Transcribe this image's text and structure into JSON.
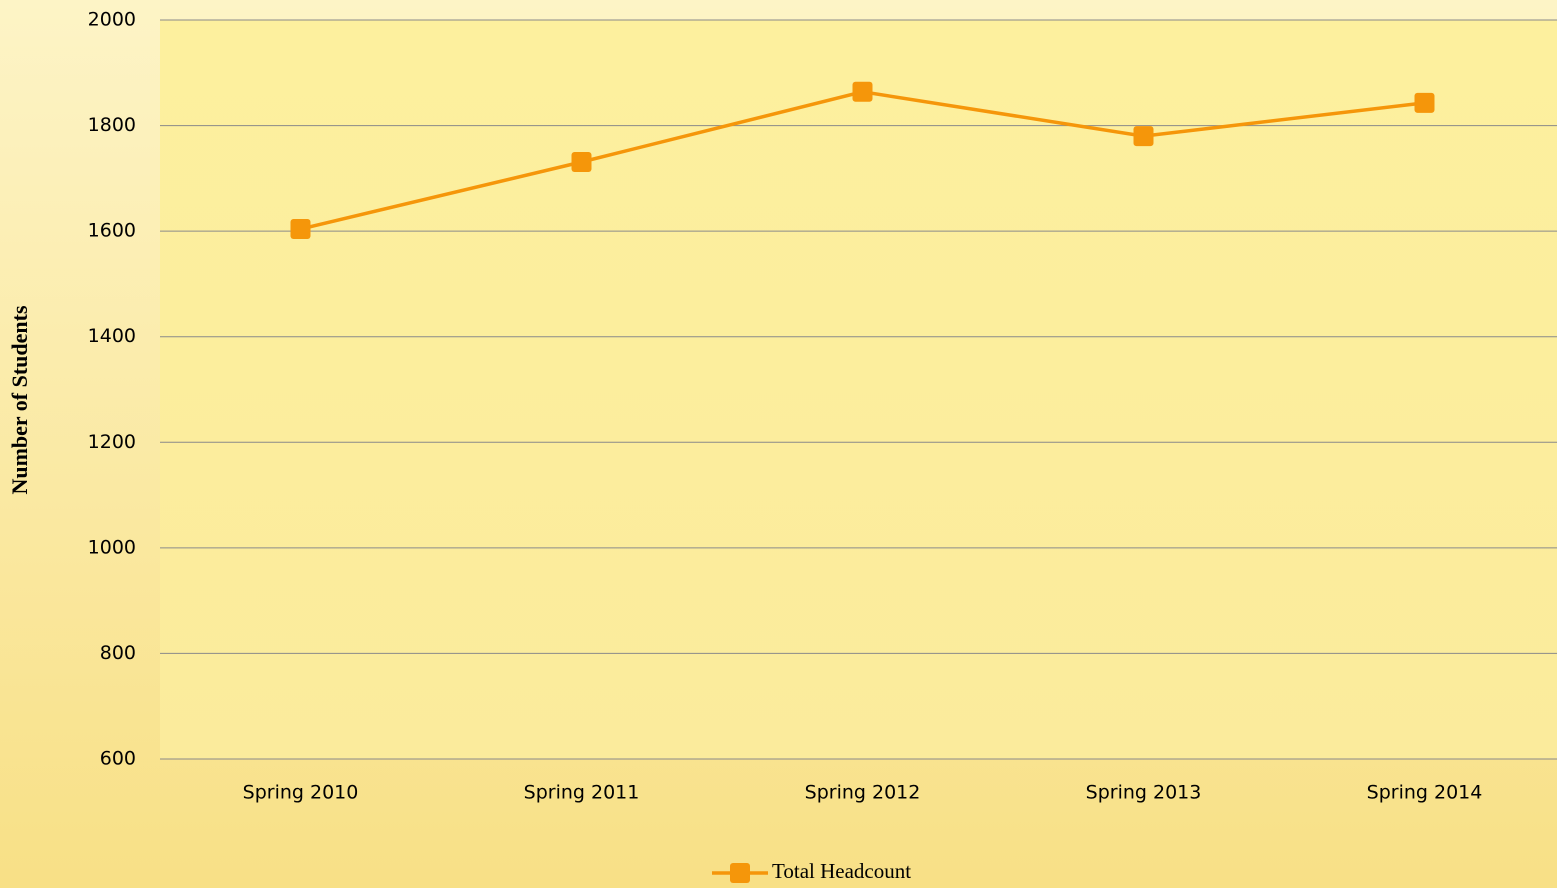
{
  "chart_data": {
    "type": "line",
    "y_label": "Number of Students",
    "categories": [
      "Spring 2010",
      "Spring 2011",
      "Spring 2012",
      "Spring 2013",
      "Spring 2014"
    ],
    "series": [
      {
        "name": "Total Headcount",
        "color": "#f5960a",
        "values": [
          1604,
          1731,
          1864,
          1780,
          1843
        ]
      }
    ],
    "ylim": [
      600,
      2000
    ],
    "yticks": [
      600,
      800,
      1000,
      1200,
      1400,
      1600,
      1800,
      2000
    ],
    "grid": true,
    "legend": "bottom"
  }
}
